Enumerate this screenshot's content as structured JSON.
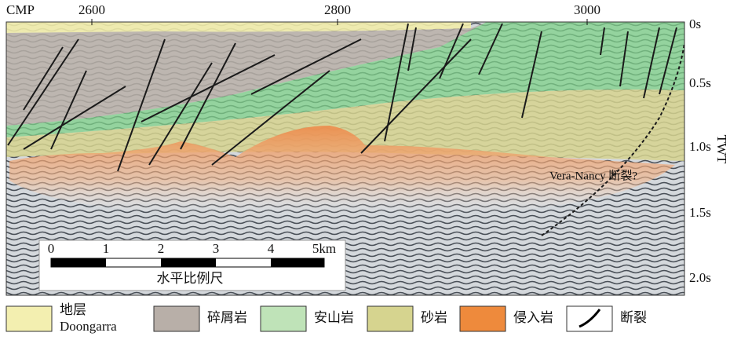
{
  "section": {
    "cmp_label": "CMP",
    "cmp_ticks": [
      "2600",
      "2800",
      "3000"
    ],
    "time_ticks": [
      "0s",
      "0.5s",
      "1.0s",
      "1.5s",
      "2.0s"
    ],
    "time_axis_label": "TWT",
    "annotation": "Vera-Nancy 断裂?"
  },
  "scale_bar": {
    "ticks": [
      "0",
      "1",
      "2",
      "3",
      "4",
      "5km"
    ],
    "title": "水平比例尺"
  },
  "legend": [
    {
      "label": "地层",
      "sublabel": "Doongarra"
    },
    {
      "label": "碎屑岩"
    },
    {
      "label": "安山岩"
    },
    {
      "label": "砂岩"
    },
    {
      "label": "侵入岩"
    },
    {
      "label": "断裂"
    }
  ]
}
